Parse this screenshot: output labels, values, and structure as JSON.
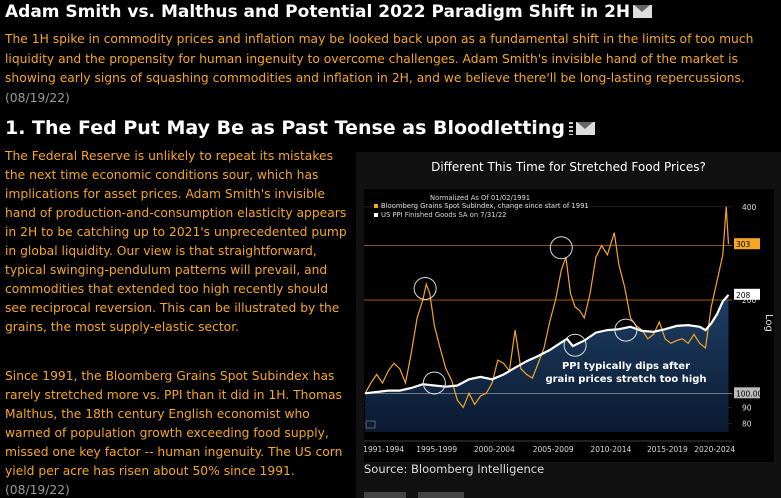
{
  "header": {
    "title": "Adam Smith vs. Malthus and Potential 2022 Paradigm Shift in 2H",
    "intro": "The 1H spike in commodity prices and inflation may be looked back upon as a fundamental shift in the limits of too much liquidity and the propensity for human ingenuity to overcome challenges. Adam Smith's invisible hand of the market is showing early signs of squashing commodities and inflation in 2H, and we believe there'll be long-lasting repercussions.",
    "intro_date": "(08/19/22)"
  },
  "section1": {
    "title": "1. The Fed Put May Be as Past Tense as Bloodletting",
    "para1": "The Federal Reserve is unlikely to repeat its mistakes the next time economic conditions sour, which has implications for asset prices. Adam Smith's invisible hand of production-and-consumption elasticity appears in 2H to be catching up to 2021's unprecedented pump in global liquidity. Our view is that straightforward, typical swinging-pendulum patterns will prevail, and commodities that extended too high recently should see reciprocal reversion. This can be illustrated by the grains, the most supply-elastic sector.",
    "para2": "Since 1991, the Bloomberg Grains Spot Subindex has rarely stretched more vs. PPI than it did in 1H. Thomas Malthus, the 18th century English economist who warned of population growth exceeding food supply, missed one key factor -- human ingenuity. The US corn yield per acre has risen about 50% since 1991.",
    "para2_date": "(08/19/22)"
  },
  "chart_data": {
    "type": "line",
    "title": "Different This Time for Stretched Food Prices?",
    "normalized_note": "Normalized As Of 01/02/1991",
    "series": [
      {
        "name": "Bloomberg Grains Spot Subindex, change since start of 1991",
        "color": "#f5a623",
        "x": [
          1991.0,
          1991.5,
          1992.0,
          1992.5,
          1993.0,
          1993.5,
          1994.0,
          1994.5,
          1995.0,
          1995.5,
          1996.0,
          1996.3,
          1996.6,
          1997.0,
          1997.5,
          1998.0,
          1998.5,
          1999.0,
          1999.5,
          2000.0,
          2000.5,
          2001.0,
          2001.5,
          2002.0,
          2002.5,
          2003.0,
          2003.5,
          2004.0,
          2004.5,
          2005.0,
          2005.5,
          2006.0,
          2006.5,
          2007.0,
          2007.5,
          2008.0,
          2008.4,
          2008.8,
          2009.2,
          2009.6,
          2010.0,
          2010.5,
          2011.0,
          2011.5,
          2012.0,
          2012.6,
          2013.0,
          2013.5,
          2014.0,
          2014.5,
          2015.0,
          2015.5,
          2016.0,
          2016.5,
          2017.0,
          2017.5,
          2018.0,
          2018.5,
          2019.0,
          2019.5,
          2020.0,
          2020.5,
          2021.0,
          2021.5,
          2022.0,
          2022.3,
          2022.5
        ],
        "values": [
          100,
          108,
          115,
          108,
          118,
          125,
          120,
          108,
          135,
          175,
          200,
          225,
          210,
          165,
          140,
          120,
          110,
          95,
          90,
          100,
          92,
          98,
          100,
          108,
          128,
          125,
          118,
          160,
          120,
          115,
          112,
          125,
          140,
          170,
          200,
          250,
          275,
          210,
          190,
          185,
          175,
          210,
          275,
          300,
          280,
          330,
          260,
          220,
          175,
          165,
          160,
          150,
          155,
          170,
          150,
          145,
          148,
          150,
          145,
          155,
          145,
          140,
          190,
          230,
          280,
          400,
          303
        ]
      },
      {
        "name": "US PPI Finished Goods SA on 7/31/22",
        "color": "#ffffff",
        "x": [
          1991.0,
          1992.0,
          1993.0,
          1994.0,
          1995.0,
          1996.0,
          1997.0,
          1998.0,
          1999.0,
          2000.0,
          2001.0,
          2002.0,
          2003.0,
          2004.0,
          2005.0,
          2006.0,
          2007.0,
          2008.0,
          2008.5,
          2009.0,
          2009.5,
          2010.0,
          2011.0,
          2012.0,
          2013.0,
          2014.0,
          2015.0,
          2016.0,
          2017.0,
          2018.0,
          2019.0,
          2020.0,
          2020.5,
          2021.0,
          2021.5,
          2022.0,
          2022.5
        ],
        "values": [
          100,
          101,
          102,
          102,
          104,
          107,
          106,
          105,
          106,
          111,
          113,
          111,
          115,
          121,
          127,
          132,
          138,
          146,
          150,
          142,
          145,
          148,
          157,
          160,
          161,
          164,
          159,
          158,
          161,
          165,
          166,
          164,
          160,
          168,
          180,
          198,
          208
        ]
      }
    ],
    "x_ticks": [
      "1991-1994",
      "1995-1999",
      "2000-2004",
      "2005-2009",
      "2010-2014",
      "2015-2019",
      "2020-2024"
    ],
    "y_ticks": [
      80,
      90,
      100,
      200,
      300,
      400
    ],
    "y_scale": "log",
    "ylim": [
      75,
      450
    ],
    "axis_label_right": "Log",
    "value_labels": {
      "grains": "303",
      "ppi": "208",
      "base": "100.00"
    },
    "annotation": "PPI typically dips after grain prices stretch too high",
    "grid": "horizontal",
    "legend": "top-left",
    "source": "Source: Bloomberg Intelligence"
  }
}
